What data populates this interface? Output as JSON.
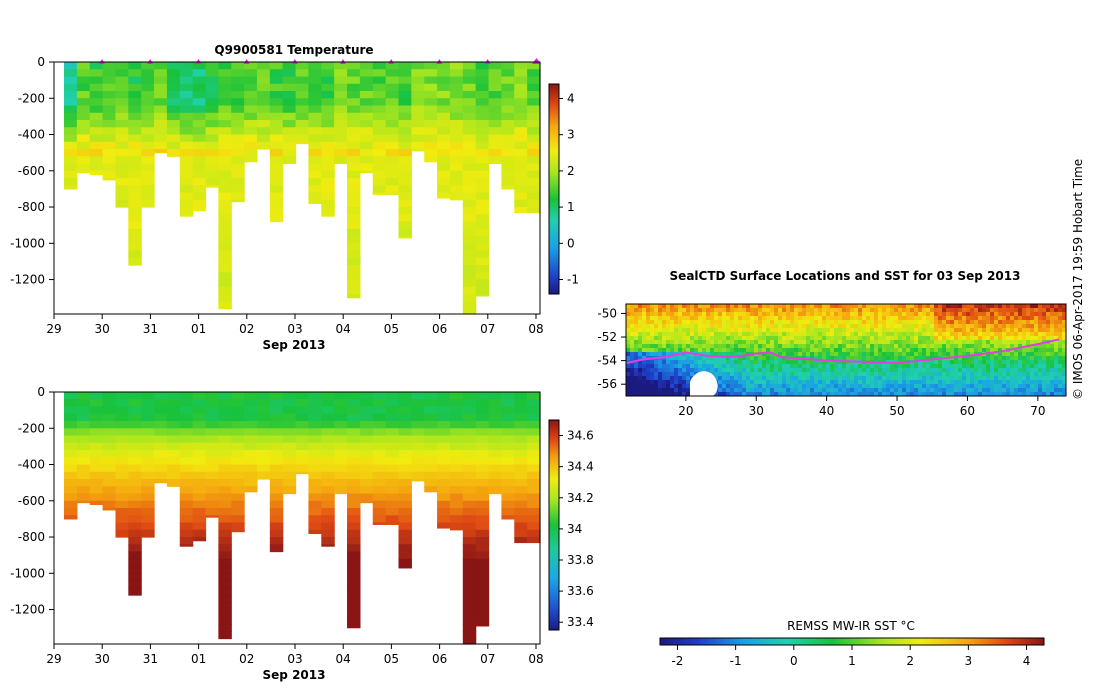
{
  "credit": "© IMOS 06-Apr-2017 19:59 Hobart Time",
  "chart_data": [
    {
      "type": "heatmap",
      "title": "Q9900581  Temperature",
      "xlabel": "Sep 2013",
      "ylabel": "",
      "x_tick_labels": [
        "29",
        "30",
        "31",
        "01",
        "02",
        "03",
        "04",
        "05",
        "06",
        "07",
        "08"
      ],
      "y_ticks": [
        0,
        -200,
        -400,
        -600,
        -800,
        -1000,
        -1200
      ],
      "ylim": [
        -1390,
        0
      ],
      "colorbar": {
        "range": [
          -1.4,
          4.4
        ],
        "ticks": [
          -1,
          0,
          1,
          2,
          3,
          4
        ]
      },
      "profiles_max_depth_m": [
        700,
        610,
        620,
        650,
        800,
        1120,
        800,
        500,
        520,
        850,
        820,
        690,
        1360,
        770,
        550,
        480,
        880,
        560,
        450,
        780,
        850,
        560,
        1300,
        610,
        730,
        730,
        970,
        490,
        550,
        750,
        760,
        1390,
        1290,
        560,
        700,
        830,
        830
      ],
      "profile_markers": 10,
      "surface_layer_values_degC": [
        0.8,
        1.5,
        1.3,
        1.4,
        1.5,
        1.2,
        1.4,
        1.6,
        1.1,
        1.0,
        0.9,
        1.2,
        1.4,
        1.3,
        1.5,
        1.6,
        1.4,
        1.3,
        1.5,
        1.5,
        1.4,
        1.7,
        1.6,
        1.6,
        1.5,
        1.6,
        1.4,
        1.8,
        1.8,
        1.7,
        1.7,
        1.6,
        1.3,
        1.5,
        1.7,
        1.8,
        1.5
      ],
      "deep_layer_value_degC": 2.4
    },
    {
      "type": "heatmap",
      "title": "",
      "xlabel": "Sep 2013",
      "ylabel": "",
      "x_tick_labels": [
        "29",
        "30",
        "31",
        "01",
        "02",
        "03",
        "04",
        "05",
        "06",
        "07",
        "08"
      ],
      "y_ticks": [
        0,
        -200,
        -400,
        -600,
        -800,
        -1000,
        -1200
      ],
      "ylim": [
        -1390,
        0
      ],
      "colorbar": {
        "range": [
          33.35,
          34.7
        ],
        "ticks": [
          33.4,
          33.6,
          33.8,
          34,
          34.2,
          34.4,
          34.6
        ]
      },
      "profiles_max_depth_m": [
        700,
        610,
        620,
        650,
        800,
        1120,
        800,
        500,
        520,
        850,
        820,
        690,
        1360,
        770,
        550,
        480,
        880,
        560,
        450,
        780,
        850,
        560,
        1300,
        610,
        730,
        730,
        970,
        490,
        550,
        750,
        760,
        1390,
        1290,
        560,
        700,
        830,
        830
      ],
      "surface_value_psu": 33.95,
      "deep_value_psu": 34.72
    },
    {
      "type": "heatmap",
      "title": "SealCTD Surface Locations and SST for 03 Sep 2013",
      "xlabel": "",
      "ylabel": "",
      "x_tick_labels": [
        "20",
        "30",
        "40",
        "50",
        "60",
        "70"
      ],
      "y_tick_labels": [
        "-50",
        "-52",
        "-54",
        "-56"
      ],
      "xlim": [
        11.5,
        74
      ],
      "ylim": [
        -57,
        -49.2
      ],
      "colorbar_label": "REMSS MW-IR SST °C",
      "colorbar": {
        "range": [
          -2.3,
          4.3
        ],
        "ticks": [
          -2,
          -1,
          0,
          1,
          2,
          3,
          4
        ]
      },
      "track": [
        [
          11.5,
          -54.2
        ],
        [
          14,
          -53.9
        ],
        [
          17,
          -53.7
        ],
        [
          20,
          -53.3
        ],
        [
          23,
          -53.6
        ],
        [
          26,
          -53.7
        ],
        [
          28,
          -53.6
        ],
        [
          30,
          -53.4
        ],
        [
          32,
          -53.3
        ],
        [
          33.5,
          -53.7
        ],
        [
          36,
          -53.8
        ],
        [
          40,
          -54
        ],
        [
          45,
          -54.1
        ],
        [
          50,
          -54.2
        ],
        [
          55,
          -53.9
        ],
        [
          60,
          -53.6
        ],
        [
          65,
          -53.2
        ],
        [
          70,
          -52.6
        ],
        [
          73,
          -52.2
        ]
      ]
    }
  ]
}
